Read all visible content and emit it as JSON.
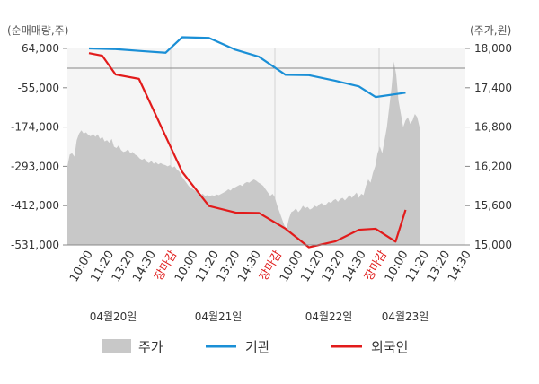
{
  "chart_data": {
    "type": "line",
    "left_axis_unit": "(순매매량,주)",
    "right_axis_unit": "(주가,원)",
    "left_axis": {
      "ticks": [
        "64,000",
        "-55,000",
        "-174,000",
        "-293,000",
        "-412,000",
        "-531,000"
      ],
      "range": [
        -531000,
        64000
      ]
    },
    "right_axis": {
      "ticks": [
        "18,000",
        "17,400",
        "16,800",
        "16,200",
        "15,600",
        "15,000"
      ],
      "range": [
        15000,
        18000
      ]
    },
    "x_tick_labels": [
      {
        "text": "10:00",
        "close": false
      },
      {
        "text": "11:20",
        "close": false
      },
      {
        "text": "13:20",
        "close": false
      },
      {
        "text": "14:30",
        "close": false
      },
      {
        "text": "장마감",
        "close": true
      },
      {
        "text": "10:00",
        "close": false
      },
      {
        "text": "11:20",
        "close": false
      },
      {
        "text": "13:20",
        "close": false
      },
      {
        "text": "14:30",
        "close": false
      },
      {
        "text": "장마감",
        "close": true
      },
      {
        "text": "10:00",
        "close": false
      },
      {
        "text": "11:20",
        "close": false
      },
      {
        "text": "13:20",
        "close": false
      },
      {
        "text": "14:30",
        "close": false
      },
      {
        "text": "장마감",
        "close": true
      },
      {
        "text": "10:00",
        "close": false
      },
      {
        "text": "11:20",
        "close": false
      },
      {
        "text": "13:20",
        "close": false
      },
      {
        "text": "14:30",
        "close": false
      }
    ],
    "day_labels": [
      "04월20일",
      "04월21일",
      "04월22일",
      "04월23일"
    ],
    "series": [
      {
        "name": "주가",
        "axis": "right",
        "kind": "area",
        "color": "#c8c8c8",
        "values": [
          16200,
          16380,
          16400,
          16350,
          16600,
          16700,
          16750,
          16700,
          16720,
          16680,
          16660,
          16700,
          16650,
          16690,
          16620,
          16650,
          16580,
          16600,
          16560,
          16620,
          16500,
          16480,
          16520,
          16450,
          16420,
          16430,
          16460,
          16400,
          16420,
          16380,
          16360,
          16320,
          16300,
          16320,
          16270,
          16250,
          16280,
          16240,
          16260,
          16230,
          16250,
          16230,
          16220,
          16200,
          16220,
          16180,
          16200,
          16150,
          16120,
          16050,
          16000,
          15950,
          15900,
          15870,
          15850,
          15820,
          15800,
          15760,
          15780,
          15750,
          15760,
          15740,
          15760,
          15750,
          15770,
          15760,
          15780,
          15800,
          15820,
          15850,
          15830,
          15870,
          15880,
          15900,
          15920,
          15900,
          15940,
          15960,
          15950,
          15980,
          16000,
          15980,
          15950,
          15930,
          15900,
          15850,
          15800,
          15750,
          15780,
          15720,
          15600,
          15500,
          15400,
          15300,
          15250,
          15400,
          15500,
          15520,
          15560,
          15500,
          15540,
          15600,
          15560,
          15580,
          15540,
          15560,
          15600,
          15580,
          15620,
          15640,
          15600,
          15620,
          15660,
          15640,
          15680,
          15700,
          15660,
          15700,
          15720,
          15680,
          15720,
          15760,
          15720,
          15760,
          15800,
          15720,
          15780,
          15760,
          15900,
          16000,
          15950,
          16100,
          16200,
          16400,
          16500,
          16400,
          16600,
          16800,
          17100,
          17400,
          17800,
          17600,
          17200,
          17000,
          16800,
          16900,
          16950,
          16850,
          16900,
          17000,
          16950,
          16800
        ]
      },
      {
        "name": "기관",
        "axis": "left",
        "kind": "line",
        "color": "#1a8fd6",
        "x": [
          0,
          0.08,
          0.16,
          0.23,
          0.28,
          0.36,
          0.44,
          0.51,
          0.59,
          0.66,
          0.74,
          0.81,
          0.86,
          0.95
        ],
        "values": [
          64000,
          62000,
          56000,
          51000,
          98000,
          96000,
          60000,
          39000,
          -16000,
          -17000,
          -34000,
          -51000,
          -83000,
          -70000
        ]
      },
      {
        "name": "외국인",
        "axis": "left",
        "kind": "line",
        "color": "#e21b1b",
        "x": [
          0,
          0.04,
          0.08,
          0.15,
          0.28,
          0.36,
          0.44,
          0.51,
          0.59,
          0.66,
          0.74,
          0.81,
          0.86,
          0.92,
          0.95
        ],
        "values": [
          50000,
          42000,
          -15000,
          -28000,
          -310000,
          -413000,
          -433000,
          -434000,
          -482000,
          -538000,
          -520000,
          -485000,
          -482000,
          -521000,
          -425000
        ]
      }
    ],
    "legend_placement": "bottom",
    "grid": false
  }
}
